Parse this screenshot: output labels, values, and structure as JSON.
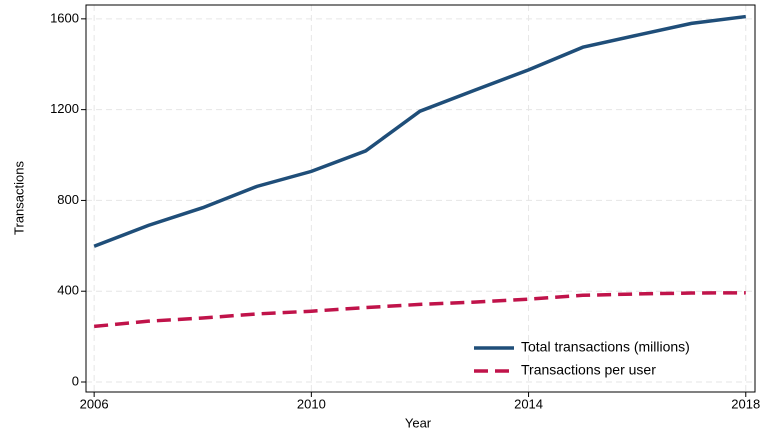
{
  "chart_data": {
    "type": "line",
    "x_label": "Year",
    "y_label": "Transactions",
    "x": [
      2006,
      2007,
      2008,
      2009,
      2010,
      2011,
      2012,
      2013,
      2014,
      2015,
      2016,
      2017,
      2018
    ],
    "series": [
      {
        "name": "Total transactions (millions)",
        "color": "#1f4e79",
        "dash": false,
        "values": [
          598,
          690,
          768,
          862,
          928,
          1018,
          1193,
          1285,
          1375,
          1475,
          1528,
          1580,
          1610
        ]
      },
      {
        "name": "Transactions per user",
        "color": "#c0134a",
        "dash": true,
        "values": [
          245,
          268,
          282,
          300,
          312,
          328,
          342,
          352,
          365,
          382,
          388,
          392,
          393
        ]
      }
    ],
    "xlim": [
      2005.85,
      2018.17
    ],
    "xticks": [
      2006,
      2010,
      2014,
      2018
    ],
    "ylim": [
      -44,
      1661
    ],
    "yticks": [
      0,
      400,
      800,
      1200,
      1600
    ],
    "grid": true,
    "legend": "lower right"
  }
}
